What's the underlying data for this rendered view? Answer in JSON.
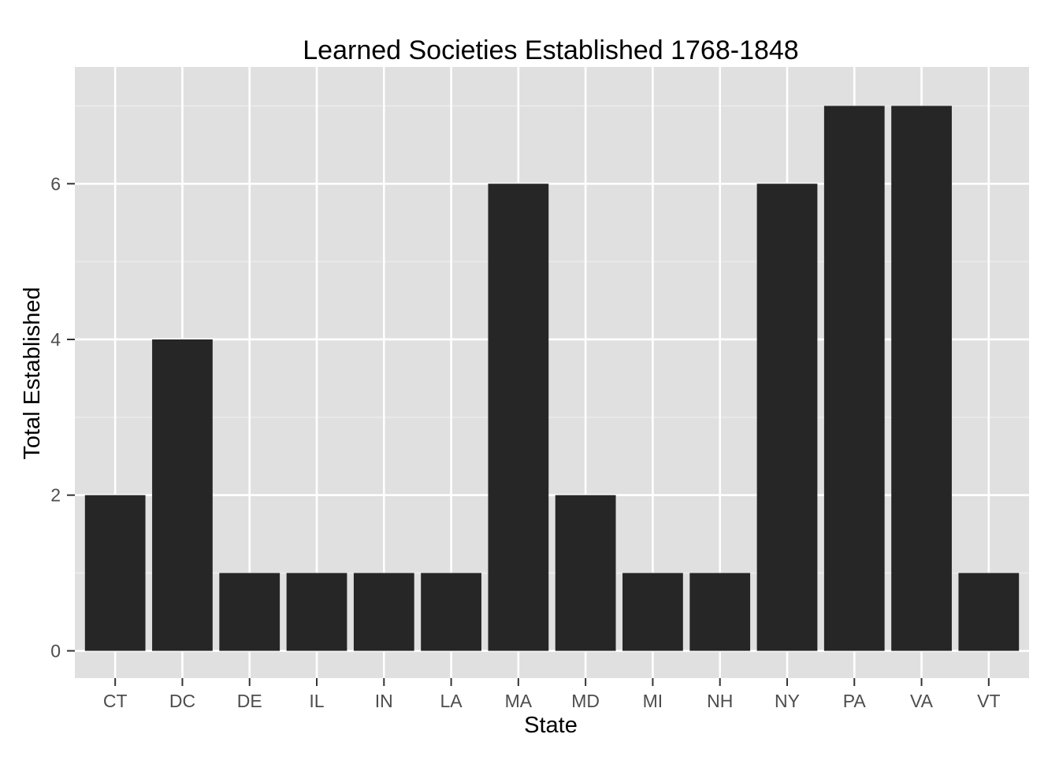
{
  "chart_data": {
    "type": "bar",
    "title": "Learned Societies Established 1768-1848",
    "xlabel": "State",
    "ylabel": "Total Established",
    "categories": [
      "CT",
      "DC",
      "DE",
      "IL",
      "IN",
      "LA",
      "MA",
      "MD",
      "MI",
      "NH",
      "NY",
      "PA",
      "VA",
      "VT"
    ],
    "values": [
      2,
      4,
      1,
      1,
      1,
      1,
      6,
      2,
      1,
      1,
      6,
      7,
      7,
      1
    ],
    "ylim": [
      -0.35,
      7.5
    ],
    "yticks": [
      0,
      2,
      4,
      6
    ],
    "y_minor_ticks": [
      1,
      3,
      5,
      7
    ],
    "grid": true,
    "legend": "none",
    "colors": {
      "bar": "#262626",
      "panel_background": "#e0e0e0",
      "grid_major": "#ffffff",
      "grid_minor": "#eeeeee",
      "tick_text": "#4d4d4d",
      "tick_mark": "#333333"
    }
  }
}
